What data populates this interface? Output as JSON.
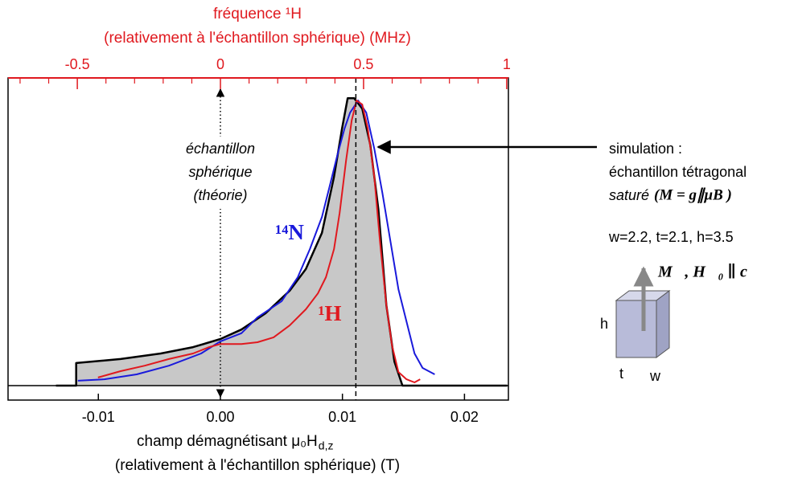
{
  "chart_data": {
    "type": "line",
    "x2label": "fréquence ¹H",
    "x2label_line2": "(relativement à l'échantillon sphérique) (MHz)",
    "x2color": "#e0191f",
    "x2lim": [
      -0.742,
      1.006
    ],
    "x2ticks": [
      -0.5,
      0,
      0.5,
      1
    ],
    "x2minorticks": [
      -0.7,
      -0.6,
      -0.4,
      -0.3,
      -0.2,
      -0.1,
      0.1,
      0.2,
      0.3,
      0.4,
      0.6,
      0.7,
      0.8,
      0.9
    ],
    "xlabel": "champ démagnétisant μ₀H",
    "xlabel_subscript": "d,z",
    "xlabel_line2": "(relativement à l'échantillon sphérique)  (T)",
    "xlim": [
      -0.0174,
      0.0236
    ],
    "xticks": [
      -0.01,
      {
        "value": 0,
        "label": "0.00"
      },
      0.01,
      0.02
    ],
    "ylim": [
      -0.05,
      1.064
    ],
    "series": [
      {
        "color": "#000000",
        "fill": "#c8c8c8",
        "x": [
          -0.01347,
          -0.01182,
          -0.01182,
          -0.00818,
          -0.00488,
          -0.00224,
          0,
          0.00172,
          0.0037,
          0.00568,
          0.007,
          0.00832,
          0.00931,
          0.00997,
          0.01043,
          0.01096,
          0.01162,
          0.01228,
          0.01294,
          0.0136,
          0.01426,
          0.01492,
          0.0235
        ],
        "values": [
          0,
          0,
          0.078,
          0.092,
          0.111,
          0.133,
          0.161,
          0.194,
          0.25,
          0.328,
          0.403,
          0.528,
          0.722,
          0.889,
          0.994,
          0.994,
          0.958,
          0.833,
          0.611,
          0.278,
          0.083,
          0,
          0
        ]
      },
      {
        "name": "¹⁴N",
        "color": "#1a1adb",
        "x": [
          -0.01168,
          -0.0095,
          -0.00686,
          -0.00422,
          -0.00158,
          0,
          0.00172,
          0.00304,
          0.00502,
          0.00634,
          0.00733,
          0.00832,
          0.00898,
          0.00964,
          0.01017,
          0.01063,
          0.01129,
          0.01195,
          0.01261,
          0.01327,
          0.01393,
          0.01459,
          0.01525,
          0.01591,
          0.01657,
          0.01756
        ],
        "values": [
          0.017,
          0.022,
          0.039,
          0.069,
          0.111,
          0.153,
          0.181,
          0.236,
          0.292,
          0.375,
          0.472,
          0.583,
          0.694,
          0.806,
          0.889,
          0.944,
          0.986,
          0.944,
          0.819,
          0.667,
          0.5,
          0.333,
          0.222,
          0.111,
          0.061,
          0.039
        ]
      },
      {
        "name": "¹H",
        "color": "#e0191f",
        "x": [
          -0.01003,
          -0.00818,
          -0.0062,
          -0.00422,
          -0.00224,
          -0.00092,
          0,
          0.00172,
          0.00304,
          0.00436,
          0.00568,
          0.007,
          0.00799,
          0.00865,
          0.00931,
          0.00977,
          0.0103,
          0.01076,
          0.01116,
          0.01162,
          0.01208,
          0.01261,
          0.01307,
          0.0136,
          0.01406,
          0.01459,
          0.01525,
          0.01591,
          0.01637
        ],
        "values": [
          0.028,
          0.05,
          0.069,
          0.092,
          0.111,
          0.133,
          0.144,
          0.144,
          0.15,
          0.167,
          0.208,
          0.264,
          0.319,
          0.375,
          0.472,
          0.597,
          0.778,
          0.917,
          0.986,
          0.972,
          0.889,
          0.722,
          0.5,
          0.278,
          0.139,
          0.047,
          0.022,
          0.011,
          0.022
        ]
      }
    ],
    "reference_lines": [
      {
        "x": 0,
        "style": "dotted"
      },
      {
        "x": 0.0111,
        "style": "dashed"
      }
    ],
    "sample_note": [
      "échantillon",
      "sphérique",
      "(théorie)"
    ],
    "simulation_note": [
      "simulation :",
      "échantillon tétragonal"
    ],
    "saturation": "saturé",
    "saturation_formula": "(M = g∥μB )",
    "dimensions": "w=2.2, t=2.1, h=3.5",
    "field_note": "M⃗, H⃗₀ ∥ c⃗",
    "box_labels": [
      "h",
      "t",
      "w"
    ]
  }
}
